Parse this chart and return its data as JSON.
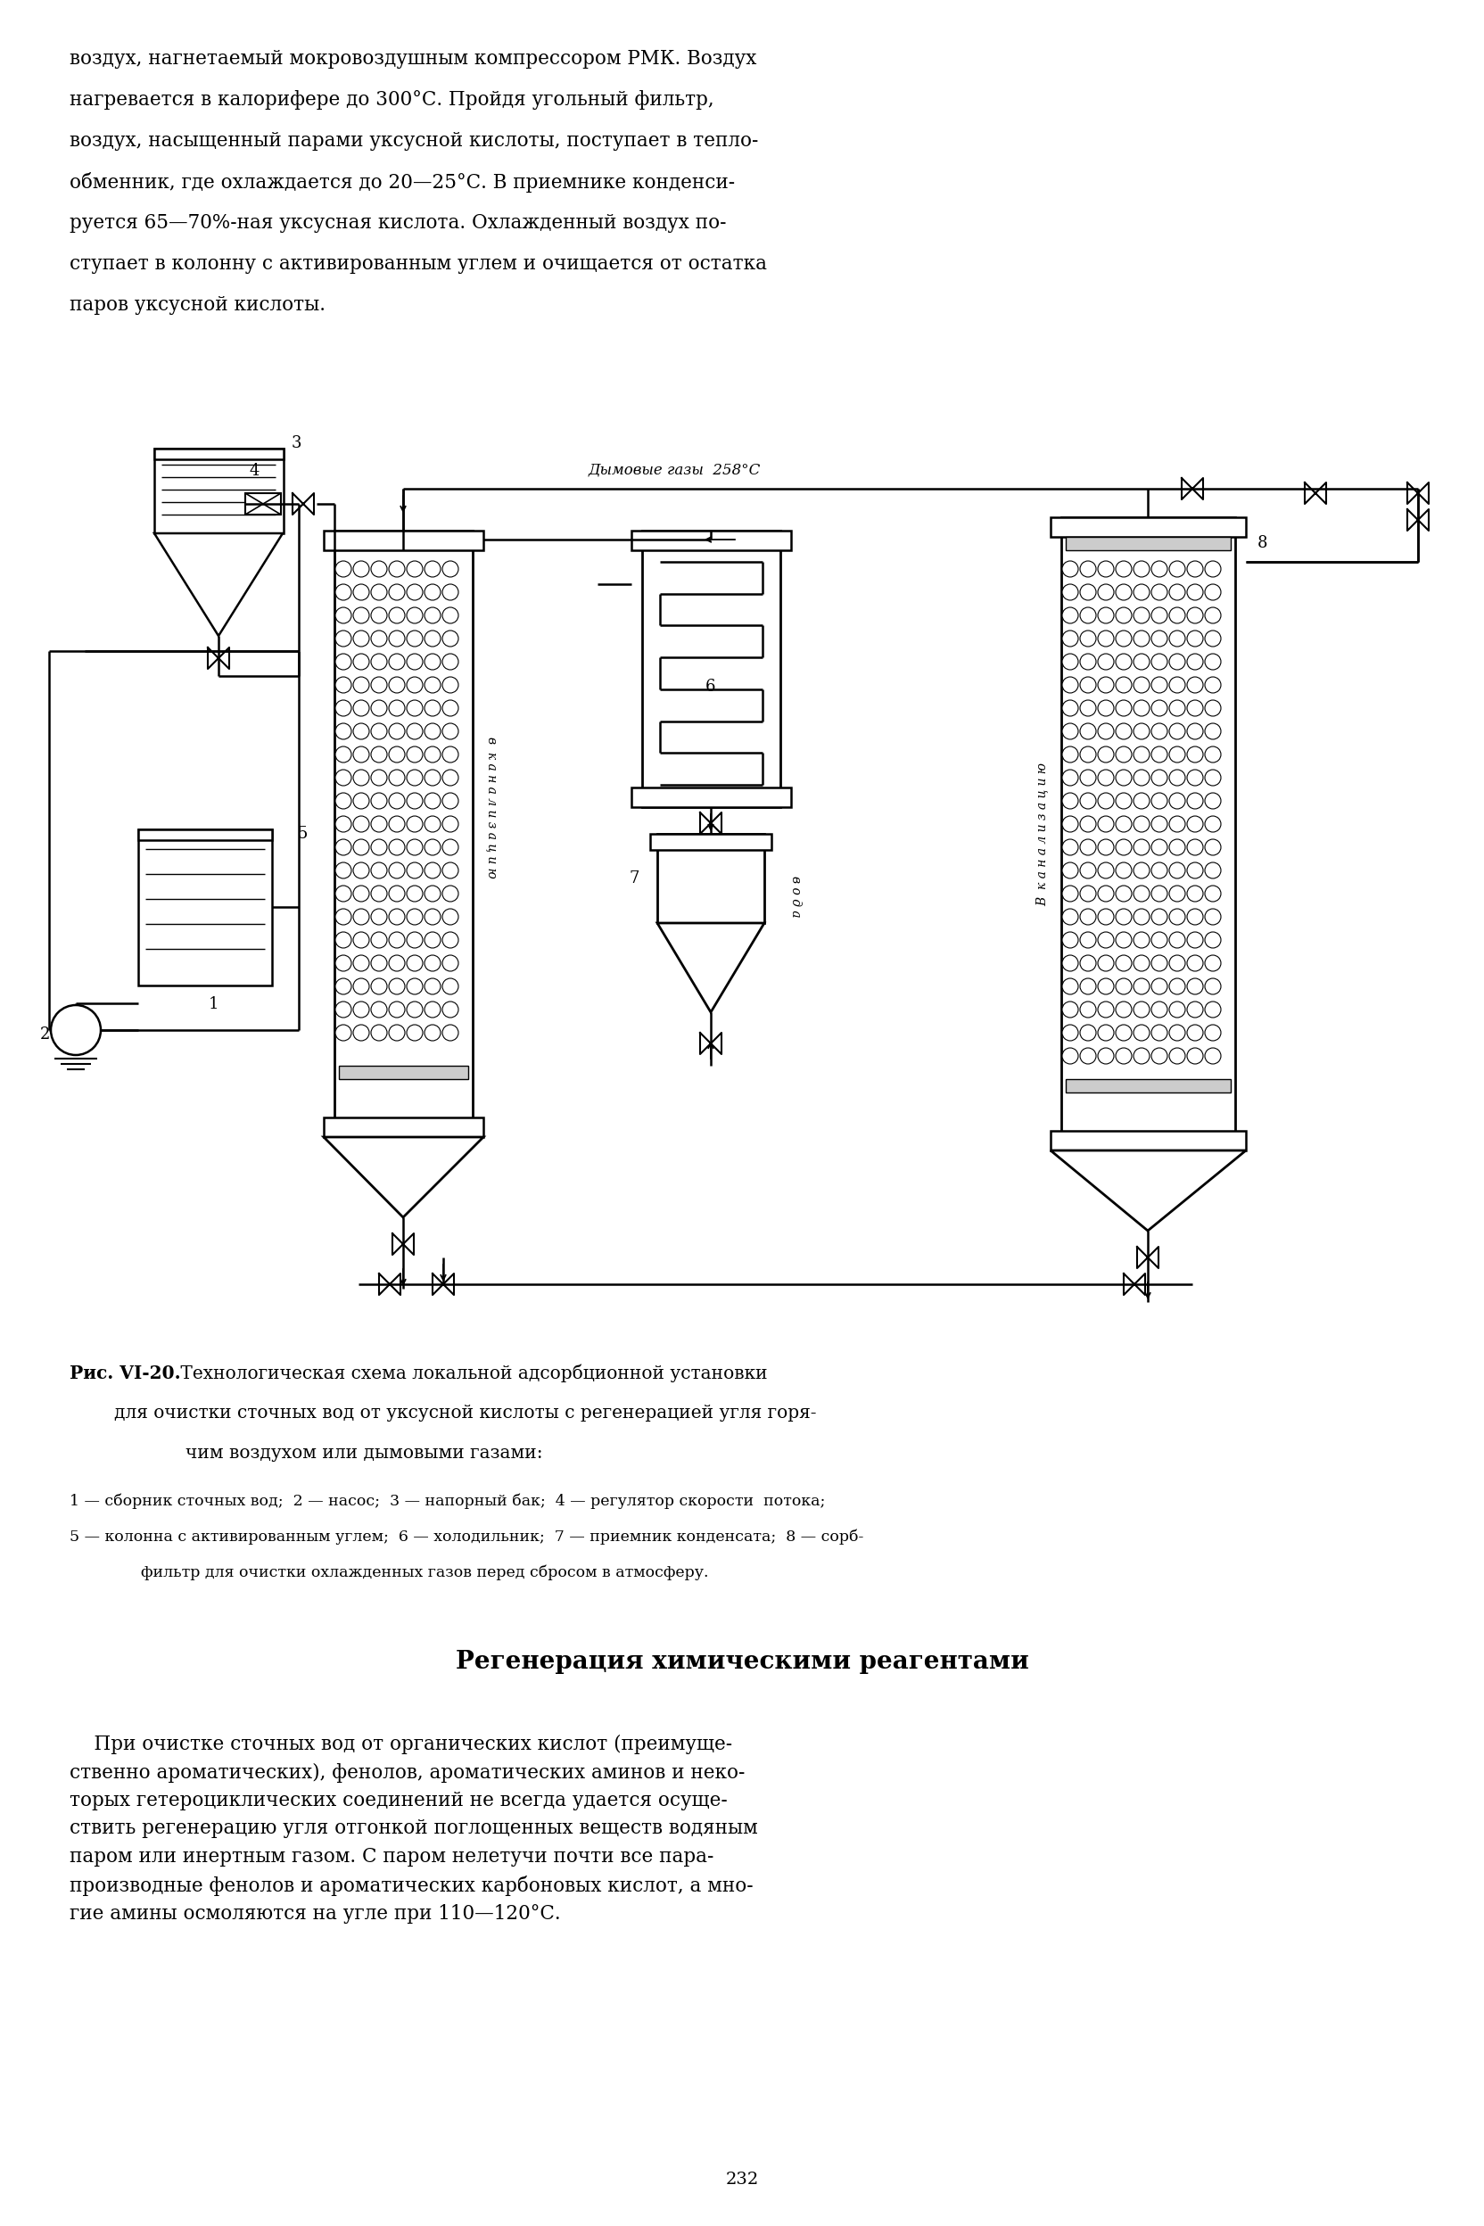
{
  "page_width": 16.64,
  "page_height": 24.96,
  "bg_color": "#ffffff",
  "top_text_line1": "воздух, нагнетаемый мокровоздушным компрессором РМК. Воздух",
  "top_text_line2": "нагревается в калорифере до 300°С. Пройдя угольный фильтр,",
  "top_text_line3": "воздух, насыщенный парами уксусной кислоты, поступает в тепло-",
  "top_text_line4": "обменник, где охлаждается до 20—25°С. В приемнике конденси-",
  "top_text_line5": "руется 65—70%-ная уксусная кислота. Охлажденный воздух по-",
  "top_text_line6": "ступает в колонну с активированным углем и очищается от остатка",
  "top_text_line7": "паров уксусной кислоты.",
  "smoke_label": "Дымовые газы  258°С",
  "kanal_label_5": "в  к а н а л и з а ц и ю",
  "kanal_label_8": "В  к а н а л и з а ц и ю",
  "voda_label": "в о д а",
  "label_1": "1",
  "label_2": "2",
  "label_3": "3",
  "label_4": "4",
  "label_5": "5",
  "label_6": "6",
  "label_7": "7",
  "label_8": "8",
  "fig_caption_bold": "Рис. VI-20.",
  "fig_caption_normal": " Технологическая схема локальной адсорбционной установки",
  "fig_caption_line2": "для очистки сточных вод от уксусной кислоты с регенерацией угля горя-",
  "fig_caption_line3": "чим воздухом или дымовыми газами:",
  "fig_legend_line1": "1 — сборник сточных вод;  2 — насос;  3 — напорный бак;  4 — регулятор скорости  потока;",
  "fig_legend_line2": "5 — колонна с активированным углем;  6 — холодильник;  7 — приемник конденсата;  8 — сорб-",
  "fig_legend_line3": "фильтр для очистки охлажденных газов перед сбросом в атмосферу.",
  "section_title": "Регенерация химическими реагентами",
  "bottom_text": "    При очистке сточных вод от органических кислот (преимуще-\nственно ароматических), фенолов, ароматических аминов и неко-\nторых гетероциклических соединений не всегда удается осуще-\nствить регенерацию угля отгонкой поглощенных веществ водяным\nпаром или инертным газом. С паром нелетучи почти все пара-\nпроизводные фенолов и ароматических карбоновых кислот, а мно-\nгие амины осмоляются на угле при 110—120°С.",
  "page_number": "232"
}
